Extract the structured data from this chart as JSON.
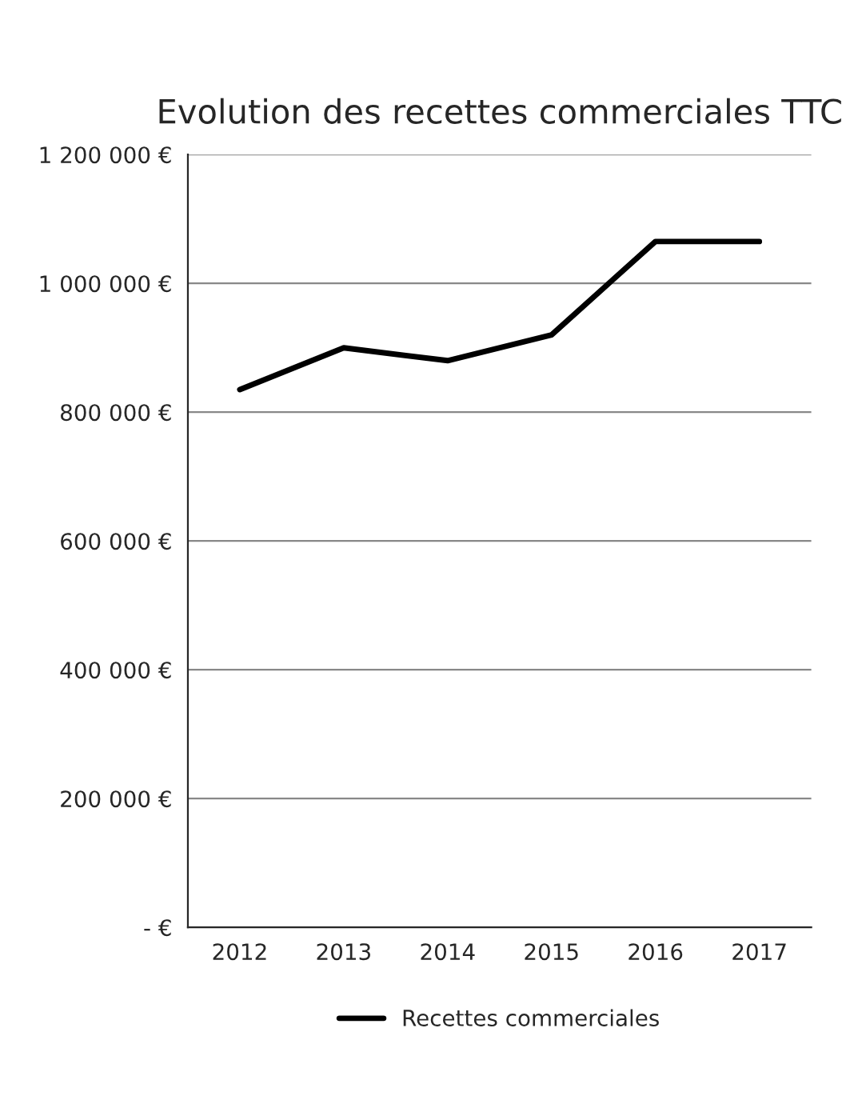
{
  "chart_data": {
    "type": "line",
    "title": "Evolution des recettes commerciales TTC",
    "categories": [
      "2012",
      "2013",
      "2014",
      "2015",
      "2016",
      "2017"
    ],
    "series": [
      {
        "name": "Recettes commerciales",
        "color": "#000000",
        "values": [
          835000,
          900000,
          880000,
          920000,
          1065000,
          1065000
        ]
      }
    ],
    "ylim": [
      0,
      1200000
    ],
    "yticks": [
      {
        "value": 0,
        "label": "- €"
      },
      {
        "value": 200000,
        "label": "200 000 €"
      },
      {
        "value": 400000,
        "label": "400 000 €"
      },
      {
        "value": 600000,
        "label": "600 000 €"
      },
      {
        "value": 800000,
        "label": "800 000 €"
      },
      {
        "value": 1000000,
        "label": "1 000 000 €"
      },
      {
        "value": 1200000,
        "label": "1 200 000 €"
      }
    ],
    "grid": "y",
    "legend": "bottom"
  }
}
